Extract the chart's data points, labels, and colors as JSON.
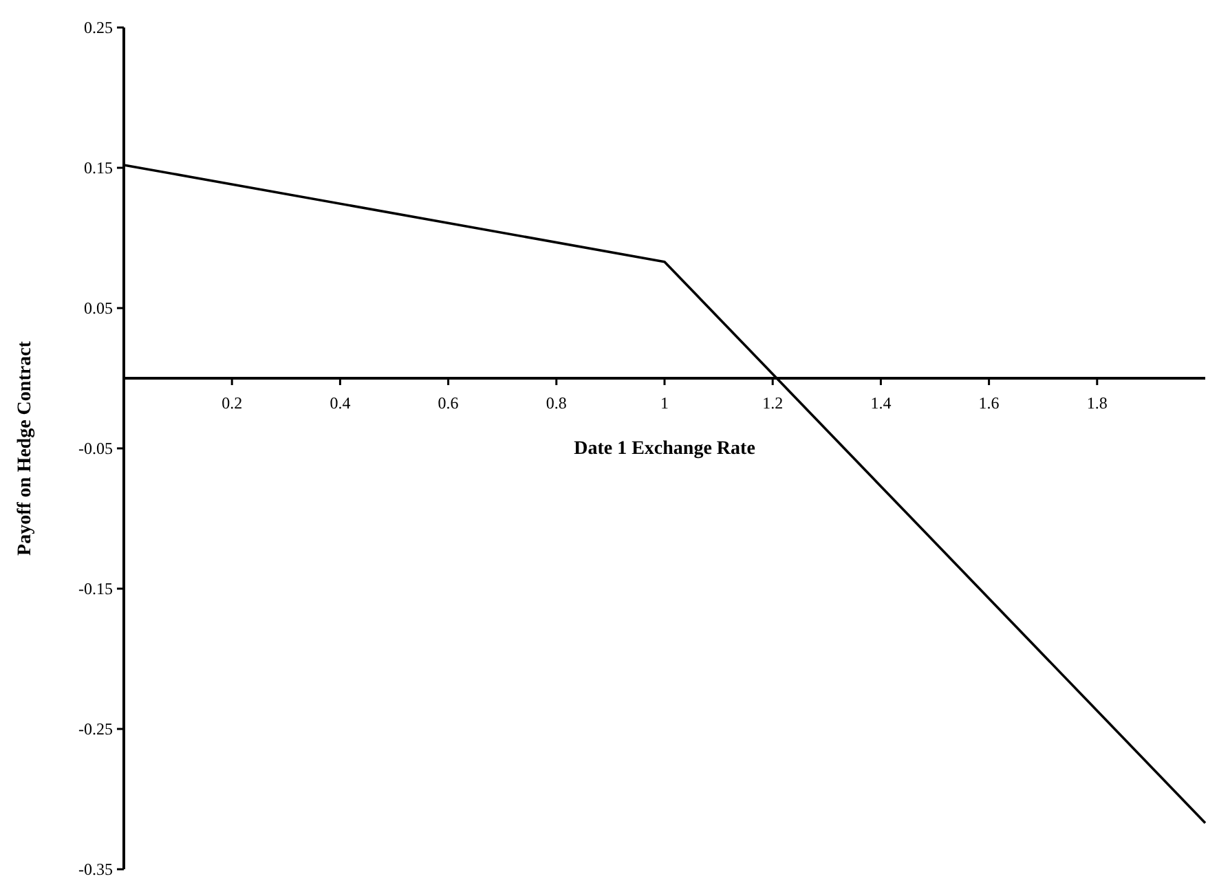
{
  "chart_data": {
    "type": "line",
    "xlabel": "Date 1 Exchange Rate",
    "ylabel": "Payoff on Hedge Contract",
    "x": [
      0,
      1,
      2
    ],
    "series": [
      {
        "color": "#000000",
        "values": [
          0.152,
          0.083,
          -0.317
        ]
      }
    ],
    "xlim": [
      0,
      2
    ],
    "xticks": [
      {
        "value": 0,
        "label": null
      },
      0.2,
      0.4,
      0.6,
      0.8,
      1,
      1.2,
      1.4,
      1.6,
      1.8
    ],
    "ylim": [
      -0.35,
      0.25
    ],
    "yticks": [
      -0.35,
      -0.25,
      -0.15,
      -0.05,
      0.05,
      0.15,
      0.25
    ],
    "grid": false,
    "marker": "none",
    "line_style": "solid"
  }
}
